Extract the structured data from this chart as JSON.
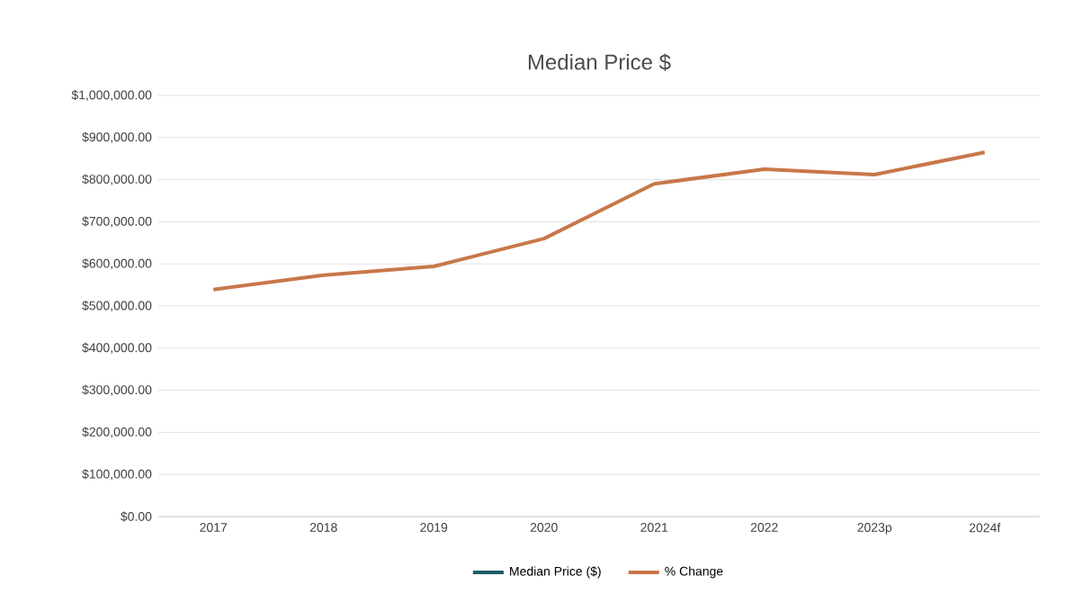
{
  "chart_data": {
    "type": "line",
    "title": "Median Price $",
    "categories": [
      "2017",
      "2018",
      "2019",
      "2020",
      "2021",
      "2022",
      "2023p",
      "2024f"
    ],
    "series": [
      {
        "name": "Median Price ($)",
        "color": "#1f5c6b",
        "values": [
          null,
          null,
          null,
          null,
          null,
          null,
          null,
          null
        ]
      },
      {
        "name": "% Change",
        "color": "#c8774a",
        "values": [
          539000,
          573000,
          594000,
          660000,
          790000,
          825000,
          812000,
          865000
        ]
      }
    ],
    "ylim": [
      0,
      1000000
    ],
    "yticks": [
      {
        "value": 0,
        "label": "$0.00"
      },
      {
        "value": 100000,
        "label": "$100,000.00"
      },
      {
        "value": 200000,
        "label": "$200,000.00"
      },
      {
        "value": 300000,
        "label": "$300,000.00"
      },
      {
        "value": 400000,
        "label": "$400,000.00"
      },
      {
        "value": 500000,
        "label": "$500,000.00"
      },
      {
        "value": 600000,
        "label": "$600,000.00"
      },
      {
        "value": 700000,
        "label": "$700,000.00"
      },
      {
        "value": 800000,
        "label": "$800,000.00"
      },
      {
        "value": 900000,
        "label": "$900,000.00"
      },
      {
        "value": 1000000,
        "label": "$1,000,000.00"
      }
    ],
    "grid": "y",
    "legend": "bottom",
    "marker": "none",
    "line_style": "solid"
  }
}
